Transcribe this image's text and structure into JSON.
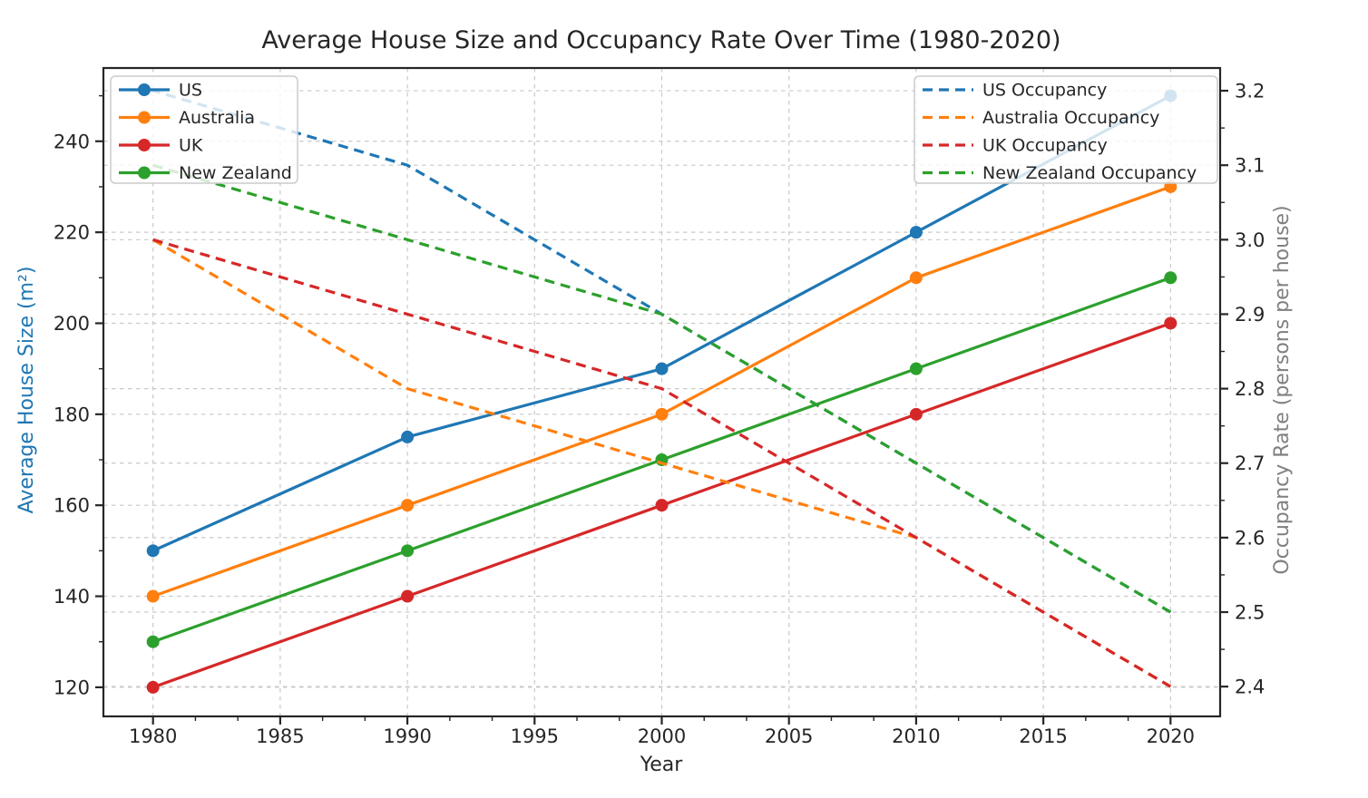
{
  "chart_data": {
    "type": "line",
    "title": "Average House Size and Occupancy Rate Over Time (1980-2020)",
    "xlabel": "Year",
    "ylabel_left": "Average House Size (m²)",
    "ylabel_right": "Occupancy Rate (persons per house)",
    "x": [
      1980,
      1990,
      2000,
      2010,
      2020
    ],
    "xlim": [
      1978.05,
      2021.95
    ],
    "ylim_left": [
      113.6,
      256.1
    ],
    "ylim_right": [
      2.36,
      3.2305
    ],
    "xticks": [
      1980,
      1985,
      1990,
      1995,
      2000,
      2005,
      2010,
      2015,
      2020
    ],
    "yticks_left": [
      120,
      140,
      160,
      180,
      200,
      220,
      240
    ],
    "yticks_right": [
      2.4,
      2.5,
      2.6,
      2.7,
      2.8,
      2.9,
      3.0,
      3.1,
      3.2
    ],
    "grid": true,
    "legend_left_title_items": [
      "US",
      "Australia",
      "UK",
      "New Zealand"
    ],
    "legend_right_title_items": [
      "US Occupancy",
      "Australia Occupancy",
      "UK Occupancy",
      "New Zealand Occupancy"
    ],
    "series_left": [
      {
        "name": "US",
        "color": "#1f77b4",
        "style": "solid",
        "marker": "circle",
        "values": [
          150,
          175,
          190,
          220,
          250
        ]
      },
      {
        "name": "Australia",
        "color": "#ff7f0e",
        "style": "solid",
        "marker": "circle",
        "values": [
          140,
          160,
          180,
          210,
          230
        ]
      },
      {
        "name": "UK",
        "color": "#d62728",
        "style": "solid",
        "marker": "circle",
        "values": [
          120,
          140,
          160,
          180,
          200
        ]
      },
      {
        "name": "New Zealand",
        "color": "#2ca02c",
        "style": "solid",
        "marker": "circle",
        "values": [
          130,
          150,
          170,
          190,
          210
        ]
      }
    ],
    "series_right": [
      {
        "name": "US Occupancy",
        "color": "#1f77b4",
        "style": "dashed",
        "values": [
          3.2,
          3.1,
          2.9,
          2.7,
          2.5
        ]
      },
      {
        "name": "Australia Occupancy",
        "color": "#ff7f0e",
        "style": "dashed",
        "values": [
          3.0,
          2.8,
          2.7,
          2.6,
          2.4
        ]
      },
      {
        "name": "UK Occupancy",
        "color": "#d62728",
        "style": "dashed",
        "values": [
          3.0,
          2.9,
          2.8,
          2.6,
          2.4
        ]
      },
      {
        "name": "New Zealand Occupancy",
        "color": "#2ca02c",
        "style": "dashed",
        "values": [
          3.1,
          3.0,
          2.9,
          2.7,
          2.5
        ]
      }
    ],
    "colors": {
      "axis_label_left": "#1f77b4",
      "axis_label_right": "#808080",
      "tick_text": "#262626",
      "spine": "#262626",
      "grid": "#c9c9c9",
      "legend_border": "#cccccc",
      "legend_bg": "rgba(255,255,255,0.8)"
    }
  }
}
